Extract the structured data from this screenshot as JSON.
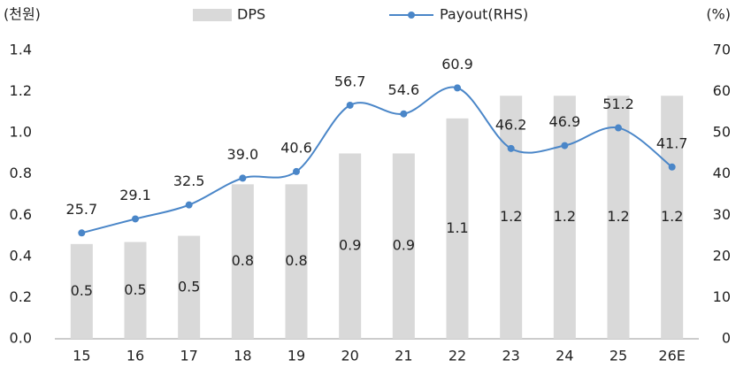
{
  "chart_data": {
    "type": "bar",
    "ylabel": "(천원)",
    "y2label": "(%)",
    "categories": [
      "15",
      "16",
      "17",
      "18",
      "19",
      "20",
      "21",
      "22",
      "23",
      "24",
      "25",
      "26E"
    ],
    "series": [
      {
        "name": "DPS",
        "color": "#d9d9d9",
        "type": "bar",
        "values": [
          0.46,
          0.47,
          0.5,
          0.75,
          0.75,
          0.9,
          0.9,
          1.07,
          1.18,
          1.18,
          1.18,
          1.18
        ],
        "value_labels": [
          "0.5",
          "0.5",
          "0.5",
          "0.8",
          "0.8",
          "0.9",
          "0.9",
          "1.1",
          "1.2",
          "1.2",
          "1.2",
          "1.2"
        ]
      },
      {
        "name": "Payout(RHS)",
        "color": "#4a86c8",
        "type": "line",
        "axis": "y2",
        "values": [
          25.7,
          29.1,
          32.5,
          39.0,
          40.6,
          56.7,
          54.6,
          60.9,
          46.2,
          46.9,
          51.2,
          41.7
        ],
        "value_labels": [
          "25.7",
          "29.1",
          "32.5",
          "39.0",
          "40.6",
          "56.7",
          "54.6",
          "60.9",
          "46.2",
          "46.9",
          "51.2",
          "41.7"
        ]
      }
    ],
    "ylim": [
      0,
      1.4
    ],
    "yticks": [
      {
        "value": 0,
        "label": "0.0"
      },
      0.2,
      0.4,
      0.6,
      0.8,
      {
        "value": 1,
        "label": "1.0"
      },
      1.2,
      1.4
    ],
    "y2lim": [
      0,
      70
    ],
    "y2ticks": [
      0,
      10,
      20,
      30,
      40,
      50,
      60,
      70
    ],
    "grid": false
  }
}
